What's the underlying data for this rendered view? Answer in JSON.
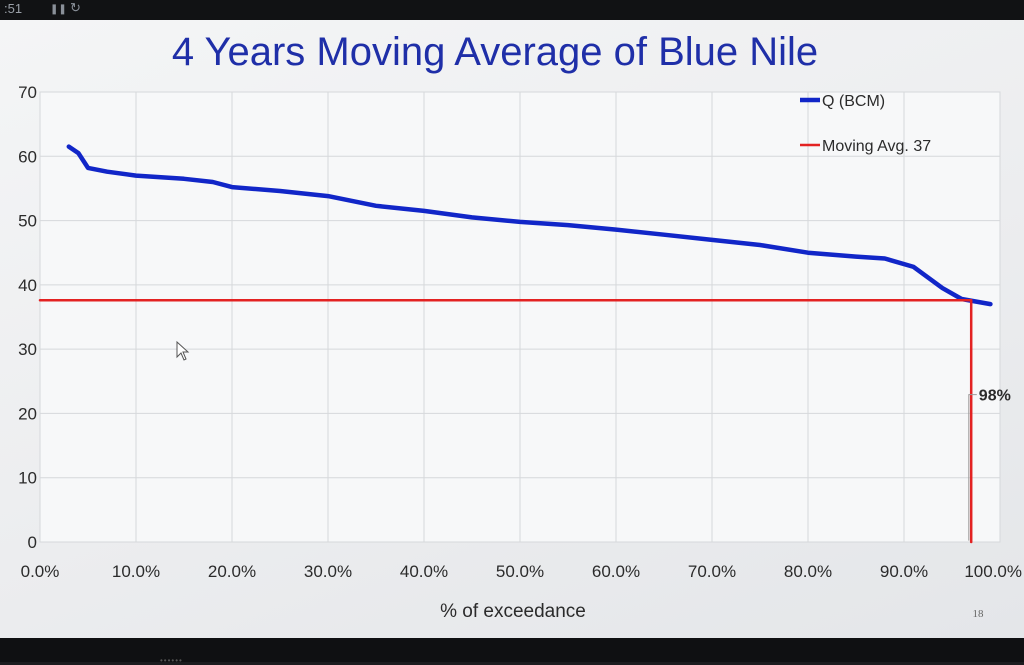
{
  "status_bar": {
    "time_fragment": ":51"
  },
  "slide_number": "18",
  "chart_data": {
    "type": "line",
    "title": "4 Years Moving Average of Blue Nile",
    "xlabel": "% of exceedance",
    "ylabel": "",
    "xlim": [
      0,
      1
    ],
    "ylim": [
      0,
      70
    ],
    "x_tick_labels": [
      "0.0%",
      "10.0%",
      "20.0%",
      "30.0%",
      "40.0%",
      "50.0%",
      "60.0%",
      "70.0%",
      "80.0%",
      "90.0%",
      "100.0%"
    ],
    "y_tick_labels": [
      "0",
      "10",
      "20",
      "30",
      "40",
      "50",
      "60",
      "70"
    ],
    "grid": true,
    "legend_position": "top-right",
    "series": [
      {
        "name": "Q (BCM)",
        "color": "#1126c8",
        "x": [
          0.03,
          0.04,
          0.05,
          0.07,
          0.1,
          0.15,
          0.18,
          0.2,
          0.25,
          0.3,
          0.35,
          0.4,
          0.45,
          0.5,
          0.55,
          0.6,
          0.65,
          0.7,
          0.75,
          0.8,
          0.85,
          0.88,
          0.91,
          0.94,
          0.96,
          0.99
        ],
        "values": [
          61.5,
          60.5,
          58.2,
          57.6,
          57.0,
          56.5,
          56.0,
          55.2,
          54.6,
          53.8,
          52.3,
          51.5,
          50.5,
          49.8,
          49.3,
          48.6,
          47.8,
          47.0,
          46.2,
          45.0,
          44.4,
          44.1,
          42.8,
          39.5,
          37.8,
          37.0
        ]
      },
      {
        "name": "Moving Avg. 37",
        "color": "#e32222",
        "x": [
          0.0,
          0.97,
          0.97
        ],
        "values": [
          37.6,
          37.6,
          0
        ]
      }
    ],
    "annotations": [
      {
        "text": "98%",
        "x": 0.98,
        "y": 22
      }
    ]
  }
}
